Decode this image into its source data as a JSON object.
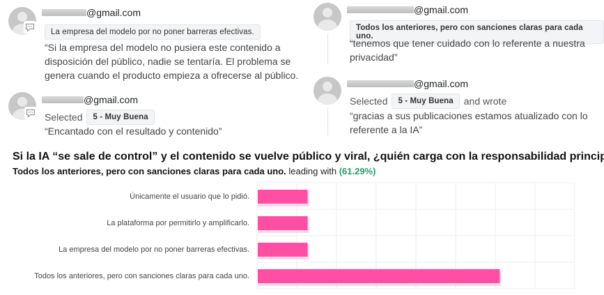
{
  "comments": [
    {
      "email": "@gmail.com",
      "selected_text": "La empresa del modelo por no poner barreras efectivas.",
      "body": "“Si la empresa del modelo no pusiera este contenido a disposición del público, nadie se tentaría. El problema se genera cuando el producto empieza a ofrecerse al público.",
      "body_lines": [
        "“Si la empresa del modelo no pusiera este contenido a",
        "disposición del público, nadie se tentaría. El problema se",
        "genera cuando el producto empieza a ofrecerse al público."
      ]
    },
    {
      "email": "@gmail.com",
      "selected_text": "Todos los anteriores, pero con sanciones claras para cada uno.",
      "body_lines": [
        "“tenemos que tener cuidado con lo referente a nuestra",
        "privacidad”"
      ]
    },
    {
      "email": "@gmail.com",
      "selected_label": "Selected",
      "selected_value": "5 - Muy Buena",
      "body_lines": [
        "“Encantado con el resultado y contenido”"
      ]
    },
    {
      "email": "@gmail.com",
      "selected_label": "Selected",
      "selected_value": "5 - Muy Buena",
      "wrote_label": "and wrote",
      "body_lines": [
        "“gracias a sus publicaciones estamos atualizado con lo",
        "referente a la IA”"
      ]
    }
  ],
  "poll": {
    "question": "Si la IA “se sale de control” y el contenido se vuelve público y viral, ¿quién carga con la responsabilidad principal?",
    "leading_option": "Todos los anteriores, pero con sanciones claras para cada uno.",
    "leading_label": "leading with",
    "leading_pct": "(61.29%)"
  },
  "chart_data": {
    "type": "bar",
    "orientation": "horizontal",
    "categories": [
      "Únicamente el usuario que lo pidió.",
      "La plataforma por permitirlo y amplificarlo.",
      "La empresa del modelo por no poner barreras efectivas.",
      "Todos los anteriores, pero con sanciones claras para cada uno."
    ],
    "values": [
      12.9,
      12.9,
      12.9,
      61.29
    ],
    "xlim": [
      0,
      80
    ],
    "grid": true,
    "bar_color": "#ff4fa3"
  },
  "colors": {
    "accent_green": "#22a06b",
    "bar_pink": "#ff4fa3",
    "avatar_gray": "#c7c7c7"
  },
  "icons": {
    "avatar": "user-avatar-icon",
    "comment": "comment-bubble-icon"
  }
}
